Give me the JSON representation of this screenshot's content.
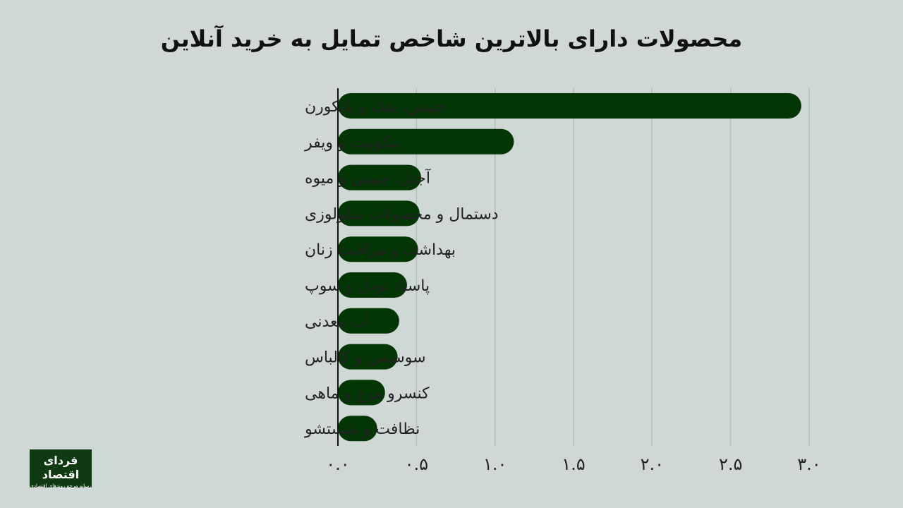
{
  "chart_data": {
    "type": "bar",
    "orientation": "horizontal",
    "title": "محصولات دارای بالاترین شاخص تمایل به خرید آنلاین",
    "categories": [
      "چیپس، پفک و پاپکورن",
      "بیکوییت و ویفر",
      "آجیل، چیپس و میوه",
      "دستمال و محصولات سلولوزی",
      "بهداشت و مراقبت زنان",
      "پاستا، نودل و سوپ",
      "آب معدنی",
      "سوسیس و کالباس",
      "کنسرو مرغ و ماهی",
      "نظافت و شستشو"
    ],
    "values": [
      2.95,
      1.12,
      0.53,
      0.52,
      0.51,
      0.44,
      0.39,
      0.38,
      0.3,
      0.25
    ],
    "xlim": [
      0,
      3
    ],
    "x_ticks": [
      0,
      0.5,
      1,
      1.5,
      2,
      2.5,
      3
    ],
    "x_tick_labels": [
      "۰.۰",
      "۰.۵",
      "۱.۰",
      "۱.۵",
      "۲.۰",
      "۲.۵",
      "۳.۰"
    ],
    "grid": "vertical",
    "bar_color": "#033605",
    "grid_color": "#b3bdb9"
  },
  "logo": {
    "name": "فردای اقتصاد",
    "tagline": "رسانه مرجع روندهای اقتصادی"
  }
}
